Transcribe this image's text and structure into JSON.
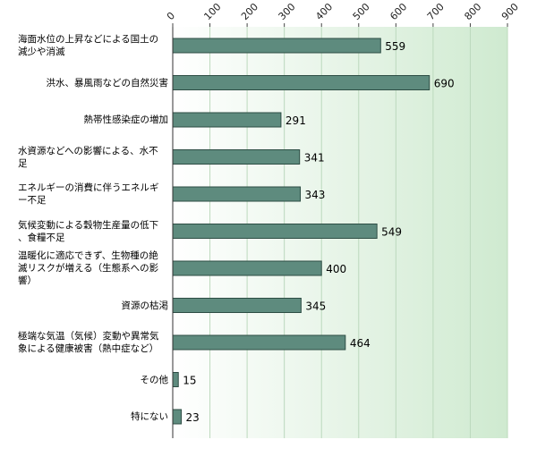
{
  "colors": {
    "bar_fill": "#5e8b7e",
    "bar_stroke": "#2d4d44",
    "plot_bg_left": "#ffffff",
    "plot_bg_right": "#cfead0",
    "grid": "#bcd9bd"
  },
  "chart_data": {
    "type": "bar",
    "orientation": "horizontal",
    "title": "",
    "xlabel": "",
    "ylabel": "",
    "xlim": [
      0,
      900
    ],
    "ticks": [
      "0",
      "100",
      "200",
      "300",
      "400",
      "500",
      "600",
      "700",
      "800",
      "900"
    ],
    "grid": true,
    "categories": [
      "海面水位の上昇などによる国土の減少や消滅",
      "洪水、暴風雨などの自然災害",
      "熱帯性感染症の増加",
      "水資源などへの影響による、水不足",
      "エネルギーの消費に伴うエネルギー不足",
      "気候変動による穀物生産量の低下、食糧不足",
      "温暖化に適応できず、生物種の絶滅リスクが増える（生態系への影響）",
      "資源の枯渇",
      "極端な気温（気候）変動や異常気象による健康被害（熱中症など）",
      "その他",
      "特にない"
    ],
    "values": [
      559,
      690,
      291,
      341,
      343,
      549,
      400,
      345,
      464,
      15,
      23
    ]
  },
  "label_lines": [
    [
      "海面水位の上昇などによる国土の",
      "減少や消滅"
    ],
    [
      "洪水、暴風雨などの自然災害"
    ],
    [
      "熱帯性感染症の増加"
    ],
    [
      "水資源などへの影響による、水不",
      "足"
    ],
    [
      "エネルギーの消費に伴うエネルギ",
      "ー不足"
    ],
    [
      "気候変動による穀物生産量の低下",
      "、食糧不足"
    ],
    [
      "温暖化に適応できず、生物種の絶",
      "滅リスクが増える（生態系への影",
      "響）"
    ],
    [
      "資源の枯渇"
    ],
    [
      "極端な気温（気候）変動や異常気",
      "象による健康被害（熱中症など）"
    ],
    [
      "その他"
    ],
    [
      "特にない"
    ]
  ]
}
